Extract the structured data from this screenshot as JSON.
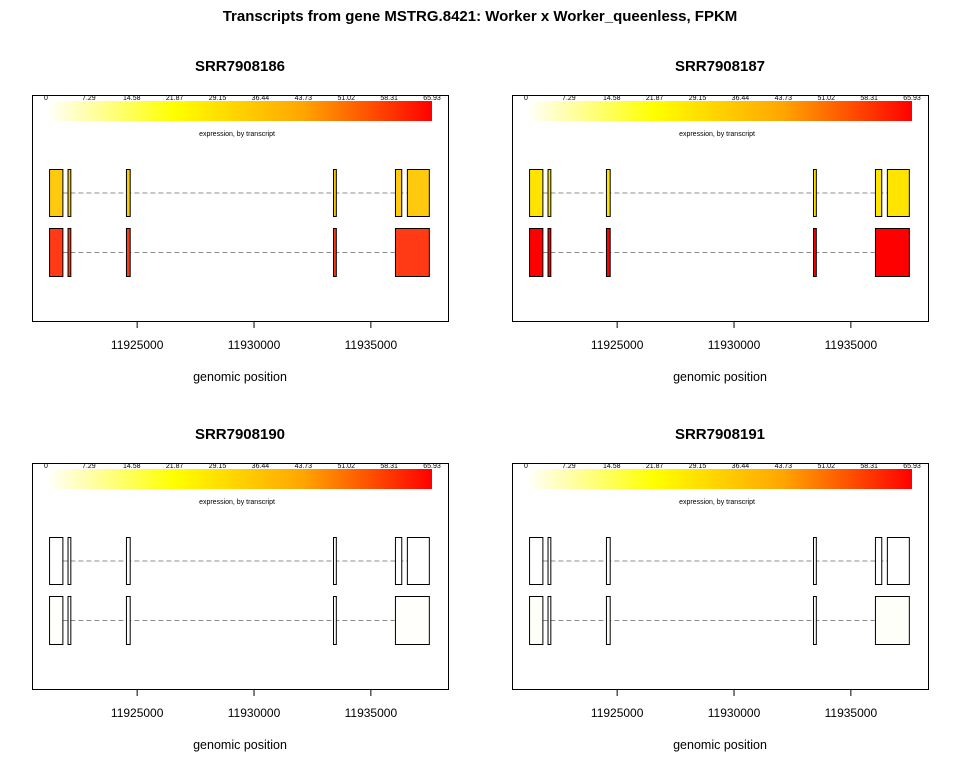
{
  "title": "Transcripts from gene MSTRG.8421: Worker x Worker_queenless, FPKM",
  "chart_data": {
    "type": "transcript-structure",
    "x_label": "genomic position",
    "x_ticks": [
      11925000,
      11930000,
      11935000
    ],
    "x_tick_labels": [
      "11925000",
      "11930000",
      "11935000"
    ],
    "x_range": [
      11920500,
      11938300
    ],
    "legend": {
      "title": "expression, by transcript",
      "ticks": [
        "0",
        "7.29",
        "14.58",
        "21.87",
        "29.15",
        "36.44",
        "43.73",
        "51.02",
        "58.31",
        "65.93"
      ],
      "min": 0,
      "max": 65.93,
      "color_stops": [
        "#ffffff",
        "#ffff00",
        "#ffa500",
        "#ff0000"
      ]
    },
    "transcripts": [
      {
        "exons": [
          [
            11921230,
            11921800
          ],
          [
            11922020,
            11922140
          ],
          [
            11924520,
            11924680
          ],
          [
            11933380,
            11933500
          ],
          [
            11936030,
            11936300
          ],
          [
            11936540,
            11937480
          ]
        ],
        "intron_range": [
          11921800,
          11937480
        ]
      },
      {
        "exons": [
          [
            11921230,
            11921800
          ],
          [
            11922020,
            11922140
          ],
          [
            11924520,
            11924680
          ],
          [
            11933380,
            11933500
          ],
          [
            11936030,
            11937480
          ]
        ],
        "intron_range": [
          11921800,
          11936030
        ]
      }
    ],
    "panels": [
      {
        "sample": "SRR7908186",
        "colors": [
          "#ffc90e",
          "#ff3a14"
        ]
      },
      {
        "sample": "SRR7908187",
        "colors": [
          "#ffe400",
          "#ff0000"
        ]
      },
      {
        "sample": "SRR7908190",
        "colors": [
          "#ffffff",
          "#fffffc"
        ]
      },
      {
        "sample": "SRR7908191",
        "colors": [
          "#ffffff",
          "#fffffa"
        ]
      }
    ]
  }
}
